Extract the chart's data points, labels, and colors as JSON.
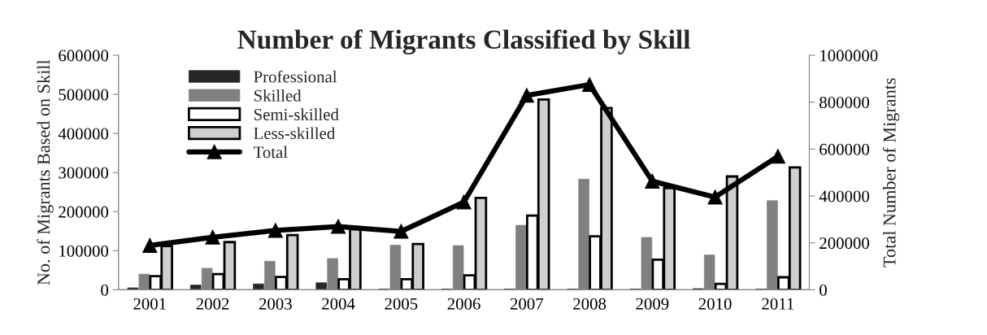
{
  "chart_data": {
    "type": "bar",
    "title": "Number of Migrants Classified by Skill",
    "ylabel": "No. of Migrants Based on Skill",
    "y2label": "Total Number of Migrants",
    "categories": [
      "2001",
      "2002",
      "2003",
      "2004",
      "2005",
      "2006",
      "2007",
      "2008",
      "2009",
      "2010",
      "2011"
    ],
    "series": [
      {
        "name": "Professional",
        "color": "#262626",
        "values": [
          5000,
          12000,
          15000,
          18000,
          2000,
          2000,
          2000,
          2000,
          2000,
          3000,
          2000
        ]
      },
      {
        "name": "Skilled",
        "color": "#808080",
        "values": [
          40000,
          55000,
          73000,
          80000,
          114000,
          113000,
          165000,
          283000,
          134000,
          89000,
          228000
        ]
      },
      {
        "name": "Semi-skilled",
        "color": "#ffffff",
        "values": [
          35000,
          40000,
          33000,
          27000,
          27000,
          37000,
          190000,
          137000,
          77000,
          15000,
          32000
        ]
      },
      {
        "name": "Less-skilled",
        "color": "#cfcfcf",
        "values": [
          112000,
          122000,
          140000,
          155000,
          117000,
          235000,
          487000,
          465000,
          260000,
          290000,
          313000
        ]
      },
      {
        "name": "Total",
        "type": "line",
        "axis": "y2",
        "color": "#000000",
        "marker": "triangle",
        "values": [
          189000,
          224000,
          253000,
          270000,
          249000,
          374000,
          829000,
          875000,
          463000,
          395000,
          569000
        ]
      }
    ],
    "ylim": [
      0,
      600000
    ],
    "yticks": [
      0,
      100000,
      200000,
      300000,
      400000,
      500000,
      600000
    ],
    "y2lim": [
      0,
      1000000
    ],
    "y2ticks": [
      0,
      200000,
      400000,
      600000,
      800000,
      1000000
    ],
    "grid": false,
    "legend": "top left"
  }
}
